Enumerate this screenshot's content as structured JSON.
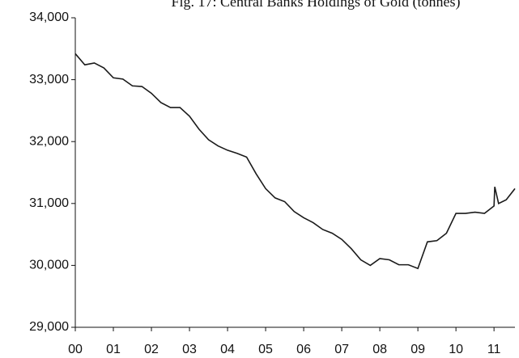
{
  "chart_data": {
    "type": "line",
    "title": "Fig. 17: Central Banks Holdings of Gold (tonnes)",
    "x": [
      0,
      0.25,
      0.5,
      0.75,
      1,
      1.25,
      1.5,
      1.75,
      2,
      2.25,
      2.5,
      2.75,
      3,
      3.25,
      3.5,
      3.75,
      4,
      4.25,
      4.5,
      4.75,
      5,
      5.25,
      5.5,
      5.75,
      6,
      6.25,
      6.5,
      6.75,
      7,
      7.25,
      7.5,
      7.75,
      8,
      8.25,
      8.5,
      8.75,
      9,
      9.25,
      9.5,
      9.75,
      10,
      10.25,
      10.5,
      10.75,
      11,
      11.02,
      11.12,
      11.32,
      11.55
    ],
    "series": [
      {
        "color": "#1a1a1a",
        "values": [
          33420,
          33240,
          33270,
          33190,
          33030,
          33010,
          32900,
          32890,
          32780,
          32630,
          32550,
          32550,
          32410,
          32200,
          32030,
          31930,
          31860,
          31810,
          31750,
          31480,
          31240,
          31090,
          31030,
          30870,
          30770,
          30690,
          30580,
          30520,
          30420,
          30270,
          30090,
          30000,
          30110,
          30090,
          30010,
          30010,
          29950,
          30380,
          30400,
          30520,
          30840,
          30840,
          30860,
          30840,
          30960,
          31270,
          31000,
          31060,
          31240
        ]
      }
    ],
    "xlim": [
      0,
      11.55
    ],
    "xticks": [
      {
        "value": 0,
        "label": "00"
      },
      {
        "value": 1,
        "label": "01"
      },
      {
        "value": 2,
        "label": "02"
      },
      {
        "value": 3,
        "label": "03"
      },
      {
        "value": 4,
        "label": "04"
      },
      {
        "value": 5,
        "label": "05"
      },
      {
        "value": 6,
        "label": "06"
      },
      {
        "value": 7,
        "label": "07"
      },
      {
        "value": 8,
        "label": "08"
      },
      {
        "value": 9,
        "label": "09"
      },
      {
        "value": 10,
        "label": "10"
      },
      {
        "value": 11,
        "label": "11"
      }
    ],
    "ylim": [
      29000,
      34000
    ],
    "yticks": [
      {
        "value": 29000,
        "label": "29,000"
      },
      {
        "value": 30000,
        "label": "30,000"
      },
      {
        "value": 31000,
        "label": "31,000"
      },
      {
        "value": 32000,
        "label": "32,000"
      },
      {
        "value": 33000,
        "label": "33,000"
      },
      {
        "value": 34000,
        "label": "34,000"
      }
    ]
  }
}
